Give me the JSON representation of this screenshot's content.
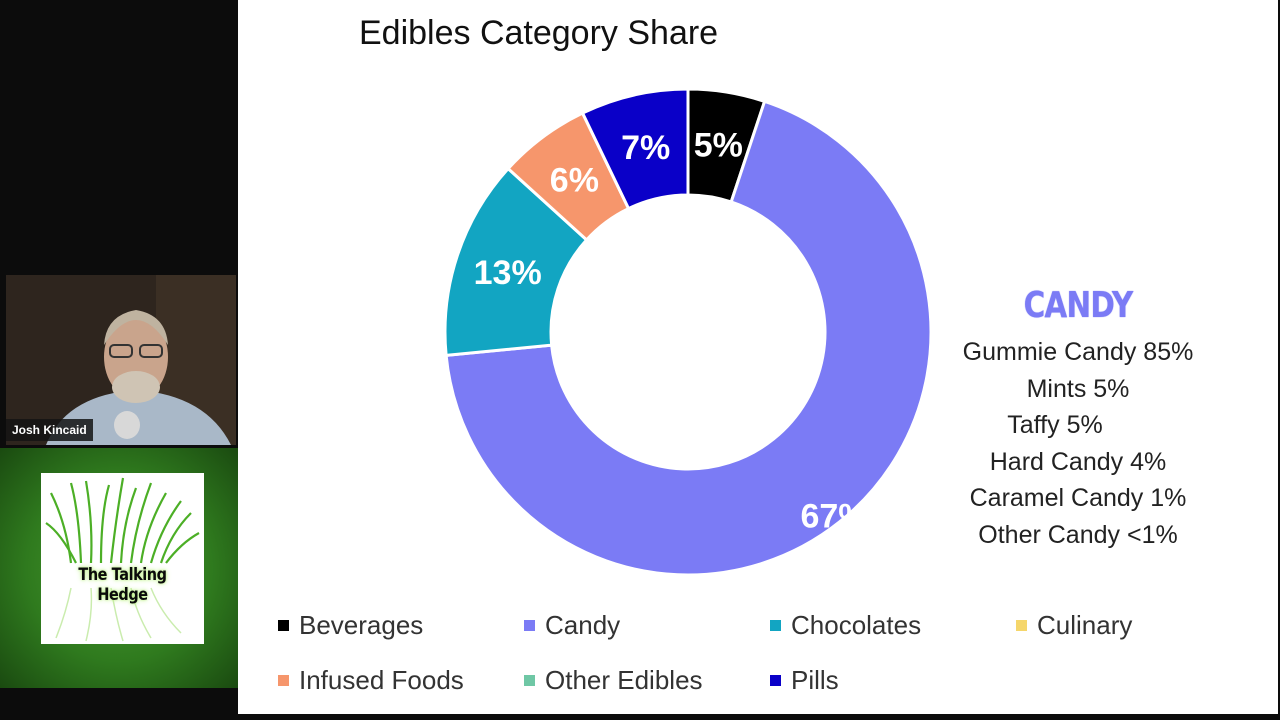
{
  "chart_data": {
    "type": "pie",
    "title": "Edibles Category Share",
    "slices": [
      {
        "label": "Beverages",
        "value": 5,
        "data_label": "5%",
        "color": "#000000"
      },
      {
        "label": "Candy",
        "value": 67,
        "data_label": "67%",
        "color": "#7b7bf5"
      },
      {
        "label": "Chocolates",
        "value": 13,
        "data_label": "13%",
        "color": "#12a5c2"
      },
      {
        "label": "Culinary",
        "value": 0,
        "data_label": "",
        "color": "#f5d66b"
      },
      {
        "label": "Infused Foods",
        "value": 6,
        "data_label": "6%",
        "color": "#f6966c"
      },
      {
        "label": "Other Edibles",
        "value": 0,
        "data_label": "",
        "color": "#6fc7a5"
      },
      {
        "label": "Pills",
        "value": 7,
        "data_label": "7%",
        "color": "#0a00c8"
      }
    ],
    "legend_position": "bottom"
  },
  "candy_breakdown": {
    "title": "CANDY",
    "title_color": "#7b7bf5",
    "items": [
      "Gummie Candy 85%",
      "Mints 5%",
      "Taffy 5%",
      "Hard Candy 4%",
      "Caramel Candy 1%",
      "Other Candy <1%"
    ]
  },
  "video": {
    "speaker_name": "Josh Kincaid",
    "logo_text": "The Talking Hedge"
  }
}
